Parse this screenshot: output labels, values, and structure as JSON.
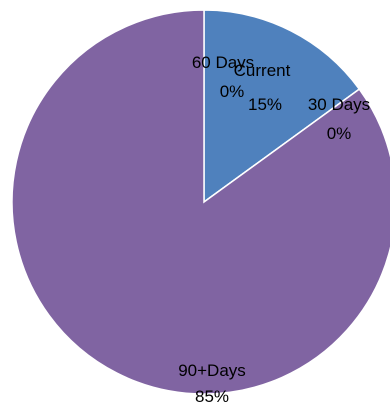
{
  "chart_data": {
    "type": "pie",
    "slices": [
      {
        "name": "Current",
        "value": 15,
        "color": "#4F81BD"
      },
      {
        "name": "30 Days",
        "value": 0,
        "color": "#C0504D"
      },
      {
        "name": "60 Days",
        "value": 0,
        "color": "#9BBB59"
      },
      {
        "name": "90+Days",
        "value": 85,
        "color": "#8064A2"
      }
    ],
    "data_labels": [
      {
        "name": "Current",
        "percent": "15%"
      },
      {
        "name": "30 Days",
        "percent": "0%"
      },
      {
        "name": "60 Days",
        "percent": "0%"
      },
      {
        "name": "90+Days",
        "percent": "85%"
      }
    ],
    "legend": "none"
  }
}
